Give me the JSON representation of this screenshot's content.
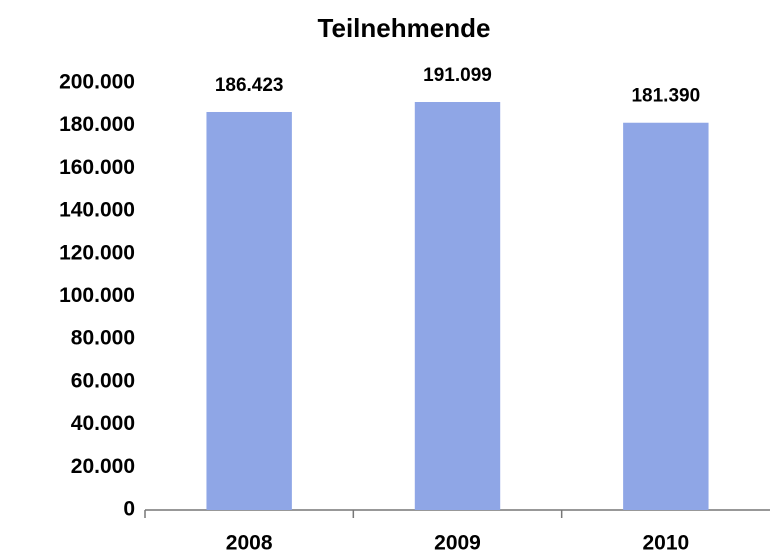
{
  "chart_data": {
    "type": "bar",
    "title": "Teilnehmende",
    "categories": [
      "2008",
      "2009",
      "2010"
    ],
    "values": [
      186423,
      191099,
      181390
    ],
    "value_labels": [
      "186.423",
      "191.099",
      "181.390"
    ],
    "color": "#8fa6e6",
    "ylim": [
      0,
      200000
    ],
    "yticks": [
      0,
      {
        "value": 20000,
        "label": "20.000"
      },
      {
        "value": 40000,
        "label": "40.000"
      },
      {
        "value": 60000,
        "label": "60.000"
      },
      {
        "value": 80000,
        "label": "80.000"
      },
      {
        "value": 100000,
        "label": "100.000"
      },
      {
        "value": 120000,
        "label": "120.000"
      },
      {
        "value": 140000,
        "label": "140.000"
      },
      {
        "value": 160000,
        "label": "160.000"
      },
      {
        "value": 180000,
        "label": "180.000"
      },
      {
        "value": 200000,
        "label": "200.000"
      }
    ],
    "grid": false
  }
}
